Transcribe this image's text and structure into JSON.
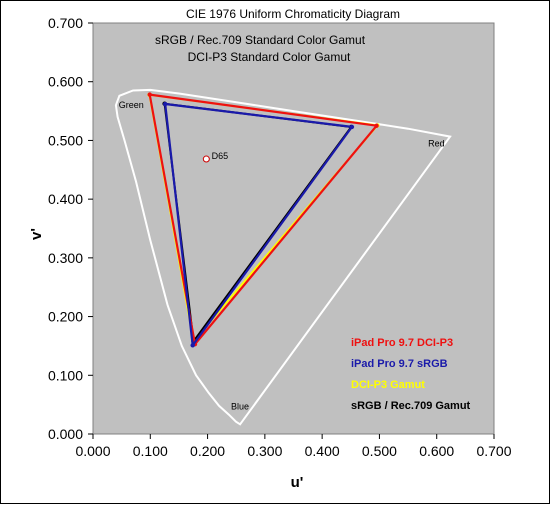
{
  "chart_data": {
    "type": "scatter",
    "title": "CIE 1976 Uniform Chromaticity Diagram",
    "subtitles": [
      "sRGB / Rec.709 Standard Color Gamut",
      "DCI-P3 Standard Color Gamut"
    ],
    "xlabel": "u'",
    "ylabel": "v'",
    "xlim": [
      0,
      0.7
    ],
    "ylim": [
      0,
      0.7
    ],
    "x_ticks": [
      "0.000",
      "0.100",
      "0.200",
      "0.300",
      "0.400",
      "0.500",
      "0.600",
      "0.700"
    ],
    "y_ticks": [
      "0.000",
      "0.100",
      "0.200",
      "0.300",
      "0.400",
      "0.500",
      "0.600",
      "0.700"
    ],
    "grid": false,
    "legend_position": "bottom-right",
    "plot_background": "#c0c0c0",
    "locus_color": "#ffffff",
    "locus": [
      [
        0.2568,
        0.0165
      ],
      [
        0.2496,
        0.021
      ],
      [
        0.237,
        0.033
      ],
      [
        0.22,
        0.048
      ],
      [
        0.202,
        0.07
      ],
      [
        0.18,
        0.1
      ],
      [
        0.155,
        0.15
      ],
      [
        0.13,
        0.22
      ],
      [
        0.1,
        0.33
      ],
      [
        0.075,
        0.43
      ],
      [
        0.055,
        0.5
      ],
      [
        0.043,
        0.54
      ],
      [
        0.04,
        0.56
      ],
      [
        0.046,
        0.576
      ],
      [
        0.07,
        0.585
      ],
      [
        0.1,
        0.586
      ],
      [
        0.15,
        0.58
      ],
      [
        0.25,
        0.565
      ],
      [
        0.35,
        0.55
      ],
      [
        0.45,
        0.535
      ],
      [
        0.55,
        0.52
      ],
      [
        0.6234,
        0.5065
      ],
      [
        0.2568,
        0.0165
      ]
    ],
    "primary_labels": [
      {
        "text": "Green",
        "u": 0.045,
        "v": 0.555
      },
      {
        "text": "Red",
        "u": 0.585,
        "v": 0.49
      },
      {
        "text": "Blue",
        "u": 0.241,
        "v": 0.042
      },
      {
        "text": "D65",
        "u": 0.207,
        "v": 0.468
      }
    ],
    "white_point": {
      "name": "D65",
      "u": 0.1978,
      "v": 0.4683
    },
    "series": [
      {
        "name": "DCI-P3 Gamut",
        "color": "#ffff00",
        "points": [
          [
            0.4964,
            0.5256
          ],
          [
            0.0986,
            0.5777
          ],
          [
            0.1754,
            0.1579
          ]
        ]
      },
      {
        "name": "sRGB / Rec.709 Gamut",
        "color": "#000000",
        "points": [
          [
            0.4507,
            0.5229
          ],
          [
            0.125,
            0.5625
          ],
          [
            0.1754,
            0.1579
          ]
        ]
      },
      {
        "name": "iPad Pro 9.7 DCI-P3",
        "color": "#ee1111",
        "points": [
          [
            0.495,
            0.525
          ],
          [
            0.099,
            0.578
          ],
          [
            0.178,
            0.153
          ]
        ]
      },
      {
        "name": "iPad Pro 9.7 sRGB",
        "color": "#1a1aaa",
        "points": [
          [
            0.452,
            0.523
          ],
          [
            0.126,
            0.562
          ],
          [
            0.174,
            0.151
          ]
        ]
      }
    ]
  }
}
